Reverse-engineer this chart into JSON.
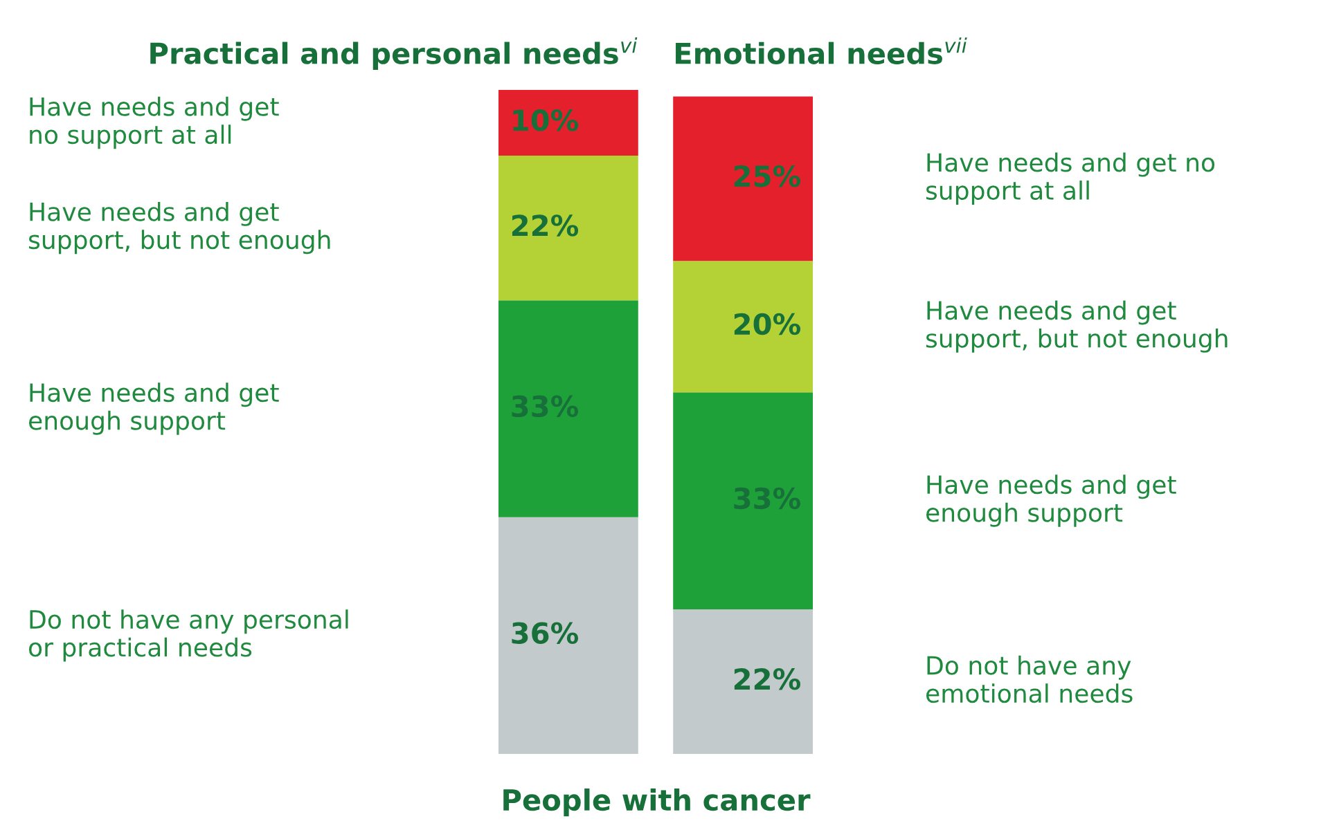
{
  "chart_data": {
    "type": "bar",
    "stacked": true,
    "xlabel": "People with cancer",
    "categories": [
      "Practical and personal needs$^{vi}$",
      "Emotional needs$^{vii}$"
    ],
    "series": [
      {
        "color": "#c3cacc",
        "values": [
          36,
          22
        ],
        "value_labels": [
          "36%",
          "22%"
        ]
      },
      {
        "color": "#1fa13a",
        "values": [
          33,
          33
        ],
        "value_labels": [
          "33%",
          "33%"
        ]
      },
      {
        "color": "#b4d236",
        "values": [
          22,
          20
        ],
        "value_labels": [
          "22%",
          "20%"
        ]
      },
      {
        "color": "#e4202c",
        "values": [
          10,
          25
        ],
        "value_labels": [
          "10%",
          "25%"
        ]
      }
    ],
    "annotations": [
      "Do not have any personal\nor practical needs",
      "Have needs and get\nenough support",
      "Have needs and get\nsupport, but not enough",
      "Have needs and get\nno support at all",
      "Do not have any\nemotional needs",
      "Have needs and get\nenough support",
      "Have needs and get\nsupport, but not enough",
      "Have needs and get no\nsupport at all"
    ]
  }
}
